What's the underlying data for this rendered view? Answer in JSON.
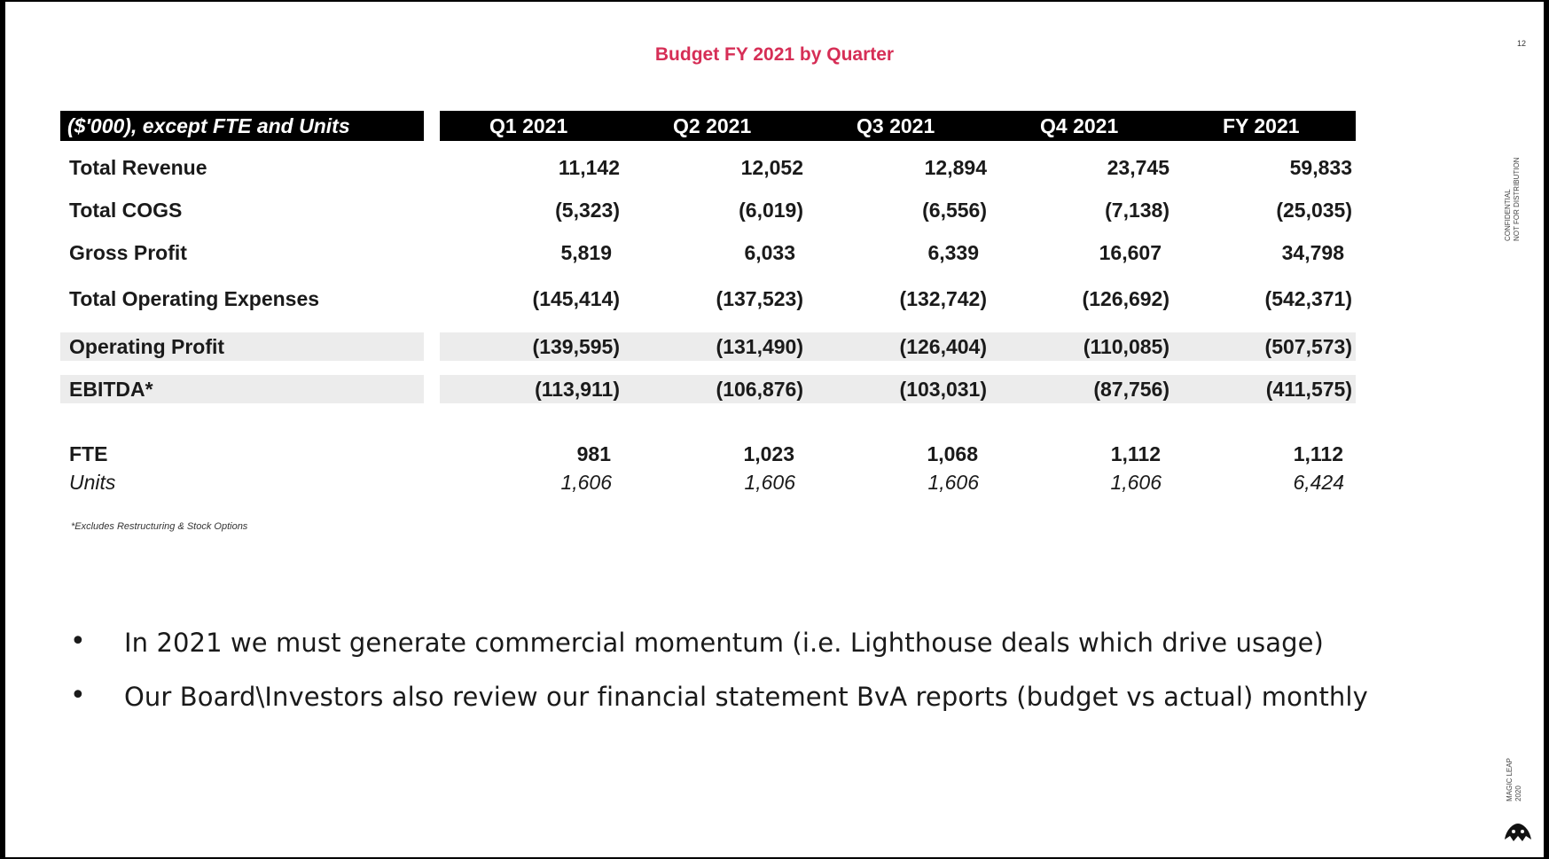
{
  "slide": {
    "title": "Budget FY 2021 by Quarter",
    "page_number": "12",
    "side_note_line1": "CONFIDENTIAL",
    "side_note_line2": "NOT FOR DISTRIBUTION",
    "brand_line1": "MAGIC LEAP",
    "brand_line2": "2020",
    "logo_icon": "magic-leap-logo"
  },
  "table": {
    "header_label": "($'000), except FTE and Units",
    "columns": [
      "Q1 2021",
      "Q2 2021",
      "Q3 2021",
      "Q4 2021",
      "FY 2021"
    ],
    "rows": [
      {
        "label": "Total Revenue",
        "values": [
          "11,142",
          "12,052",
          "12,894",
          "23,745",
          "59,833"
        ]
      },
      {
        "label": "Total COGS",
        "values": [
          "(5,323)",
          "(6,019)",
          "(6,556)",
          "(7,138)",
          "(25,035)"
        ]
      },
      {
        "label": "Gross Profit",
        "values": [
          "5,819",
          "6,033",
          "6,339",
          "16,607",
          "34,798"
        ]
      },
      {
        "label": "Total Operating Expenses",
        "values": [
          "(145,414)",
          "(137,523)",
          "(132,742)",
          "(126,692)",
          "(542,371)"
        ]
      },
      {
        "label": "Operating Profit",
        "values": [
          "(139,595)",
          "(131,490)",
          "(126,404)",
          "(110,085)",
          "(507,573)"
        ]
      },
      {
        "label": "EBITDA*",
        "values": [
          "(113,911)",
          "(106,876)",
          "(103,031)",
          "(87,756)",
          "(411,575)"
        ]
      },
      {
        "label": "FTE",
        "values": [
          "981",
          "1,023",
          "1,068",
          "1,112",
          "1,112"
        ]
      },
      {
        "label": "Units",
        "values": [
          "1,606",
          "1,606",
          "1,606",
          "1,606",
          "6,424"
        ]
      }
    ],
    "footnote": "*Excludes Restructuring & Stock Options"
  },
  "bullets": [
    "In 2021 we must generate commercial momentum (i.e. Lighthouse deals which drive usage)",
    "Our Board\\Investors also review our financial statement BvA reports (budget vs actual) monthly"
  ],
  "colors": {
    "title": "#d62e56",
    "header_bg": "#000000",
    "band_bg": "#ececec"
  }
}
